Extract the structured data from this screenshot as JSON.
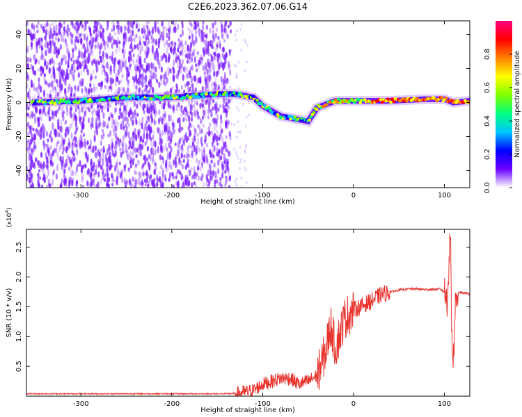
{
  "figure": {
    "title": "C2E6.2023.362.07.06.G14"
  },
  "chart_data": [
    {
      "type": "heatmap",
      "xlabel": "Height of straight line (km)",
      "ylabel": "Frequency (Hz)",
      "xlim": [
        -360,
        128
      ],
      "ylim": [
        -50,
        48
      ],
      "xticks": [
        -300,
        -200,
        -100,
        0,
        100
      ],
      "yticks": [
        -40,
        -20,
        0,
        20,
        40
      ],
      "ytick_labels": [
        "-40",
        "-20",
        "0",
        "20",
        "40"
      ],
      "colorbar": {
        "label": "Normalized spectral amplitude",
        "range": [
          0,
          1
        ],
        "ticks": [
          0.0,
          0.2,
          0.4,
          0.6,
          0.8
        ],
        "tick_labels": [
          "0.0",
          "0.2",
          "0.4",
          "0.6",
          "0.8"
        ],
        "colormap": [
          "#ffffff",
          "#6a00ff",
          "#0000ff",
          "#00c8ff",
          "#00ff7f",
          "#7fff00",
          "#ffff00",
          "#ff8000",
          "#ff0000",
          "#ff0080"
        ]
      },
      "ridge_frequency": {
        "x": [
          -350,
          -300,
          -250,
          -200,
          -150,
          -130,
          -110,
          -100,
          -90,
          -80,
          -70,
          -60,
          -50,
          -45,
          -40,
          -30,
          -20,
          0,
          40,
          80,
          100,
          110,
          128
        ],
        "y": [
          0,
          1,
          3,
          3,
          5,
          5,
          3,
          -2,
          -5,
          -8,
          -9,
          -10,
          -11,
          -7,
          -3,
          -1,
          1,
          1,
          1,
          2,
          2,
          0,
          1
        ]
      },
      "noise_region_x": [
        -360,
        -135
      ],
      "grid": false
    },
    {
      "type": "line",
      "xlabel": "Height of straight line (km)",
      "ylabel": "SNR (10 * v/v)",
      "y_multiplier": "(x10⁴)",
      "y_multiplier_base": "(x10",
      "y_multiplier_exp": "4",
      "y_multiplier_close": ")",
      "xlim": [
        -360,
        128
      ],
      "ylim": [
        0,
        2.8
      ],
      "xticks": [
        -300,
        -200,
        -100,
        0,
        100
      ],
      "yticks": [
        0.5,
        1.0,
        1.5,
        2.0,
        2.5
      ],
      "ytick_labels": [
        "0.5",
        "1.0",
        "1.5",
        "2.0",
        "2.5"
      ],
      "series": [
        {
          "color": "#e8332d",
          "x": [
            -360,
            -300,
            -200,
            -140,
            -125,
            -110,
            -100,
            -90,
            -80,
            -70,
            -60,
            -50,
            -40,
            -35,
            -30,
            -25,
            -20,
            -10,
            0,
            10,
            20,
            30,
            40,
            50,
            60,
            70,
            80,
            90,
            95,
            100,
            103,
            105,
            107,
            108,
            110,
            112,
            115,
            120,
            128
          ],
          "y": [
            0.04,
            0.04,
            0.04,
            0.04,
            0.05,
            0.1,
            0.2,
            0.25,
            0.3,
            0.3,
            0.2,
            0.25,
            0.35,
            0.55,
            0.8,
            1.2,
            0.8,
            1.3,
            1.45,
            1.52,
            1.6,
            1.7,
            1.75,
            1.78,
            1.8,
            1.8,
            1.79,
            1.79,
            1.8,
            1.75,
            1.6,
            2.2,
            2.75,
            1.1,
            0.6,
            1.5,
            1.75,
            1.73,
            1.72
          ]
        }
      ],
      "grid": false
    }
  ]
}
